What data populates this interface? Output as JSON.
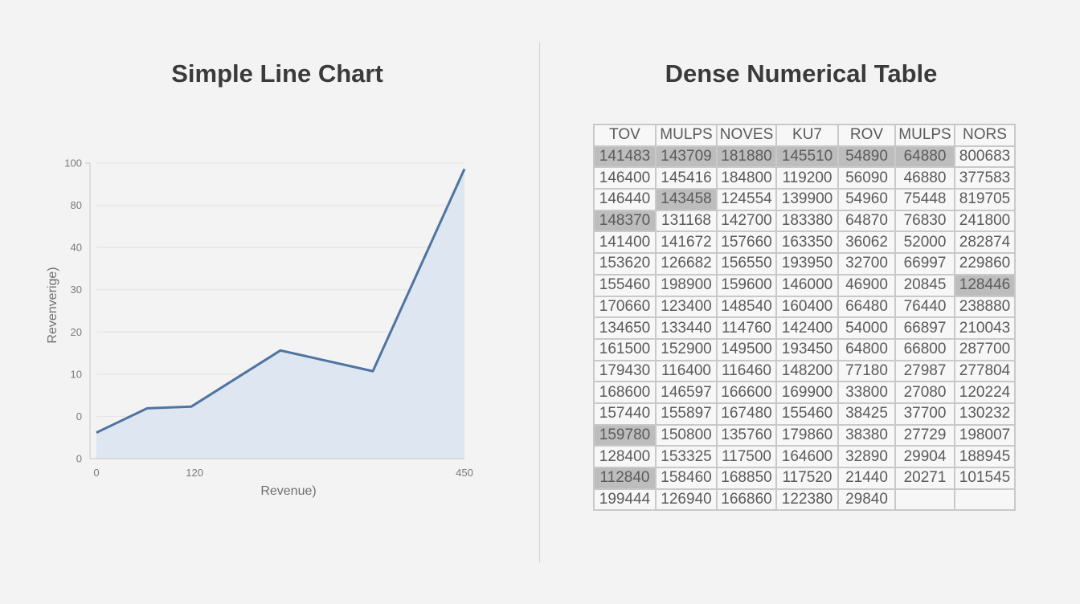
{
  "chart_title": "Simple Line Chart",
  "table_title": "Dense Numerical Table",
  "chart_data": {
    "type": "area",
    "title": "Simple Line Chart",
    "xlabel": "Revenue)",
    "ylabel": "Revenverige)",
    "x_ticks": [
      "0",
      "120",
      "450"
    ],
    "y_ticks": [
      "100",
      "80",
      "40",
      "30",
      "20",
      "10",
      "0",
      "0"
    ],
    "x_values": [
      0,
      62,
      116,
      225,
      338,
      450
    ],
    "y_values": [
      8.8,
      17.0,
      17.6,
      36.6,
      29.6,
      98.0
    ],
    "xlim": [
      0,
      450
    ],
    "ylim": [
      0,
      100
    ],
    "series_color": "#4f74a0",
    "fill_color": "#dde6f1",
    "grid": true
  },
  "table": {
    "headers": [
      "TOV",
      "MULPS",
      "NOVES",
      "KU7",
      "ROV",
      "MULPS",
      "NORS"
    ],
    "rows": [
      [
        "141483",
        "143709",
        "181880",
        "145510",
        "54890",
        "64880",
        "800683"
      ],
      [
        "146400",
        "145416",
        "184800",
        "119200",
        "56090",
        "46880",
        "377583"
      ],
      [
        "146440",
        "143458",
        "124554",
        "139900",
        "54960",
        "75448",
        "819705"
      ],
      [
        "148370",
        "131168",
        "142700",
        "183380",
        "64870",
        "76830",
        "241800"
      ],
      [
        "141400",
        "141672",
        "157660",
        "163350",
        "36062",
        "52000",
        "282874"
      ],
      [
        "153620",
        "126682",
        "156550",
        "193950",
        "32700",
        "66997",
        "229860"
      ],
      [
        "155460",
        "198900",
        "159600",
        "146000",
        "46900",
        "20845",
        "128446"
      ],
      [
        "170660",
        "123400",
        "148540",
        "160400",
        "66480",
        "76440",
        "238880"
      ],
      [
        "134650",
        "133440",
        "114760",
        "142400",
        "54000",
        "66897",
        "210043"
      ],
      [
        "161500",
        "152900",
        "149500",
        "193450",
        "64800",
        "66800",
        "287700"
      ],
      [
        "179430",
        "116400",
        "116460",
        "148200",
        "77180",
        "27987",
        "277804"
      ],
      [
        "168600",
        "146597",
        "166600",
        "169900",
        "33800",
        "27080",
        "120224"
      ],
      [
        "157440",
        "155897",
        "167480",
        "155460",
        "38425",
        "37700",
        "130232"
      ],
      [
        "159780",
        "150800",
        "135760",
        "179860",
        "38380",
        "27729",
        "198007"
      ],
      [
        "128400",
        "153325",
        "117500",
        "164600",
        "32890",
        "29904",
        "188945"
      ],
      [
        "112840",
        "158460",
        "168850",
        "117520",
        "21440",
        "20271",
        "101545"
      ],
      [
        "199444",
        "126940",
        "166860",
        "122380",
        "29840",
        "",
        ""
      ]
    ],
    "highlighted": [
      [
        0,
        0
      ],
      [
        0,
        1
      ],
      [
        0,
        2
      ],
      [
        0,
        3
      ],
      [
        0,
        4
      ],
      [
        0,
        5
      ],
      [
        2,
        1
      ],
      [
        3,
        0
      ],
      [
        6,
        6
      ],
      [
        13,
        0
      ],
      [
        15,
        0
      ]
    ],
    "highlight_color": "#bdbdbd"
  }
}
